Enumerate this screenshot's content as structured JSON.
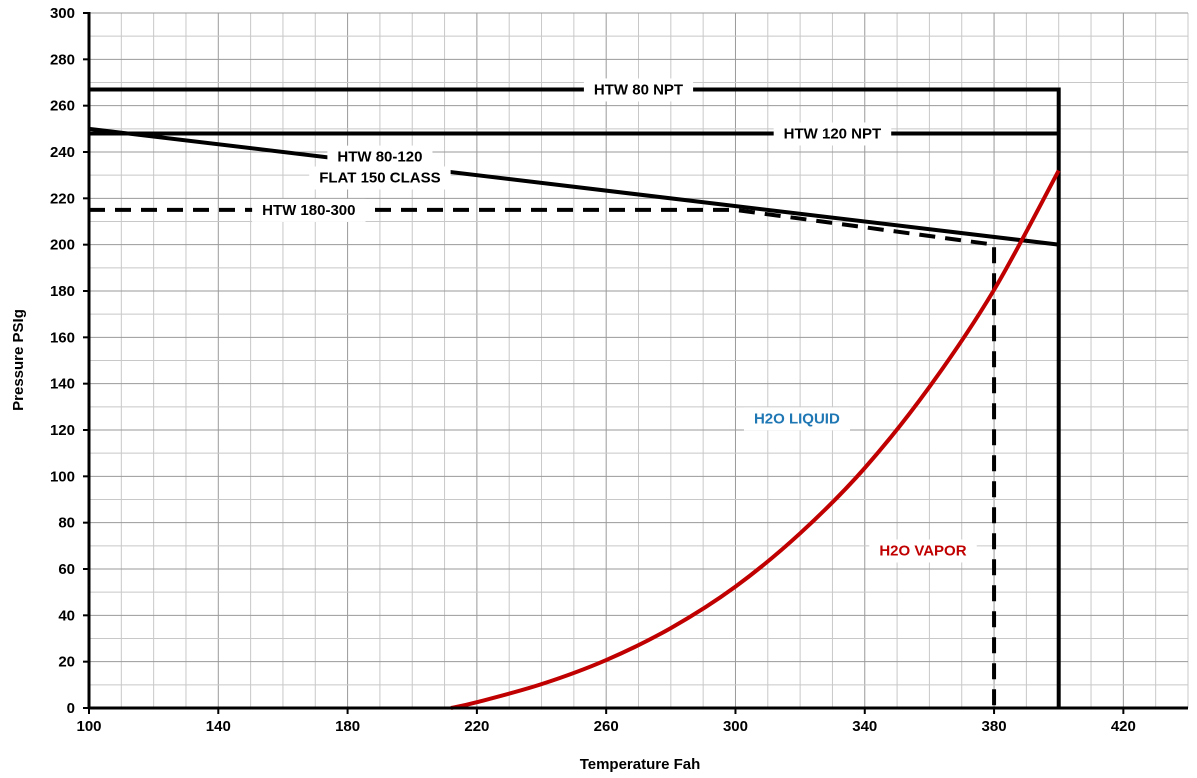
{
  "chart_data": {
    "type": "line",
    "title": "",
    "xlabel": "Temperature Fah",
    "ylabel": "Pressure PSIg",
    "xlim": [
      100,
      440
    ],
    "ylim": [
      0,
      300
    ],
    "x_ticks": [
      100,
      140,
      180,
      220,
      260,
      300,
      340,
      380,
      420
    ],
    "y_ticks": [
      0,
      20,
      40,
      60,
      80,
      100,
      120,
      140,
      160,
      180,
      200,
      220,
      240,
      260,
      280,
      300
    ],
    "x_tick_labels": [
      "100",
      "140",
      "180",
      "220",
      "260",
      "300",
      "340",
      "380",
      "420"
    ],
    "y_tick_labels": [
      "0",
      "20",
      "40",
      "60",
      "80",
      "100",
      "120",
      "140",
      "160",
      "180",
      "200",
      "220",
      "240",
      "260",
      "280",
      "300"
    ],
    "grid": true,
    "series": [
      {
        "name": "HTW 80 NPT",
        "color": "#000000",
        "style": "solid",
        "x": [
          100,
          400,
          400
        ],
        "y": [
          267,
          267,
          0
        ]
      },
      {
        "name": "HTW 120 NPT",
        "color": "#000000",
        "style": "solid",
        "x": [
          100,
          400
        ],
        "y": [
          248,
          248
        ]
      },
      {
        "name": "HTW 80-120 FLAT 150 CLASS",
        "color": "#000000",
        "style": "solid",
        "x": [
          100,
          400
        ],
        "y": [
          250,
          200
        ]
      },
      {
        "name": "HTW 180-300",
        "color": "#000000",
        "style": "dashed",
        "x": [
          100,
          300,
          380,
          380
        ],
        "y": [
          215,
          215,
          200,
          0
        ]
      },
      {
        "name": "H2O VAPOR",
        "color": "#c00000",
        "style": "solid",
        "x": [
          212,
          220,
          240,
          260,
          280,
          300,
          320,
          340,
          360,
          380,
          400
        ],
        "y": [
          0,
          2.5,
          10.3,
          20.7,
          34.5,
          52.4,
          75.4,
          103.6,
          138.6,
          180.5,
          232
        ]
      }
    ],
    "annotations": [
      {
        "text": "HTW 80 NPT",
        "x": 270,
        "y": 267,
        "color": "#000000"
      },
      {
        "text": "HTW 120 NPT",
        "x": 330,
        "y": 248,
        "color": "#000000"
      },
      {
        "text": "HTW 80-120",
        "x": 190,
        "y": 238,
        "color": "#000000"
      },
      {
        "text": "FLAT 150 CLASS",
        "x": 190,
        "y": 229,
        "color": "#000000"
      },
      {
        "text": "HTW 180-300",
        "x": 168,
        "y": 215,
        "color": "#000000"
      },
      {
        "text": "H2O LIQUID",
        "x": 319,
        "y": 125,
        "color": "#1f77b4"
      },
      {
        "text": "H2O VAPOR",
        "x": 358,
        "y": 68,
        "color": "#c00000"
      }
    ]
  }
}
